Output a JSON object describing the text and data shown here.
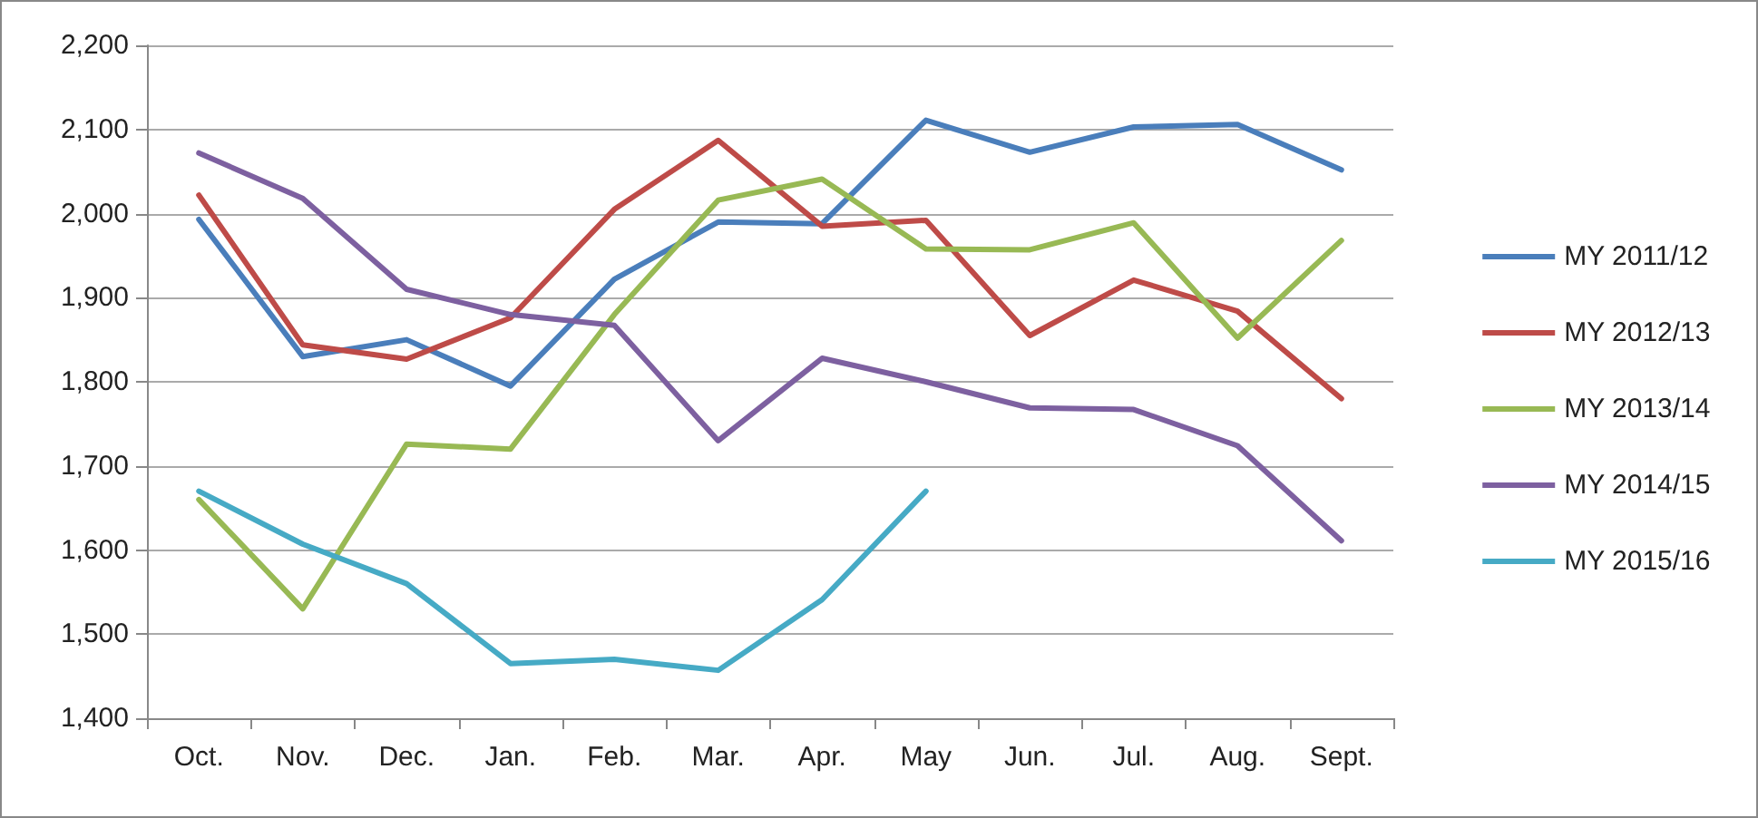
{
  "chart_data": {
    "type": "line",
    "categories": [
      "Oct.",
      "Nov.",
      "Dec.",
      "Jan.",
      "Feb.",
      "Mar.",
      "Apr.",
      "May",
      "Jun.",
      "Jul.",
      "Aug.",
      "Sept."
    ],
    "series": [
      {
        "name": "MY 2011/12",
        "color": "#4a7ebb",
        "values": [
          1993,
          1830,
          1850,
          1795,
          1922,
          1990,
          1988,
          2111,
          2073,
          2103,
          2106,
          2052
        ]
      },
      {
        "name": "MY 2012/13",
        "color": "#be4b48",
        "values": [
          2022,
          1844,
          1827,
          1876,
          2005,
          2087,
          1985,
          1992,
          1855,
          1921,
          1884,
          1780
        ]
      },
      {
        "name": "MY 2013/14",
        "color": "#98b954",
        "values": [
          1660,
          1530,
          1726,
          1720,
          1880,
          2016,
          2041,
          1958,
          1957,
          1989,
          1852,
          1968
        ]
      },
      {
        "name": "MY 2014/15",
        "color": "#7d60a0",
        "values": [
          2072,
          2018,
          1910,
          1880,
          1867,
          1730,
          1828,
          1800,
          1769,
          1767,
          1724,
          1611
        ]
      },
      {
        "name": "MY 2015/16",
        "color": "#46aac5",
        "values": [
          1670,
          1607,
          1560,
          1465,
          1470,
          1457,
          1541,
          1670,
          null,
          null,
          null,
          null
        ]
      }
    ],
    "ylim": [
      1400,
      2200
    ],
    "yticks": [
      {
        "value": 1400,
        "label": "1,400"
      },
      {
        "value": 1500,
        "label": "1,500"
      },
      {
        "value": 1600,
        "label": "1,600"
      },
      {
        "value": 1700,
        "label": "1,700"
      },
      {
        "value": 1800,
        "label": "1,800"
      },
      {
        "value": 1900,
        "label": "1,900"
      },
      {
        "value": 2000,
        "label": "2,000"
      },
      {
        "value": 2100,
        "label": "2,100"
      },
      {
        "value": 2200,
        "label": "2,200"
      }
    ],
    "grid": "y",
    "legend": "right",
    "marker": "none",
    "line_style": "solid"
  }
}
